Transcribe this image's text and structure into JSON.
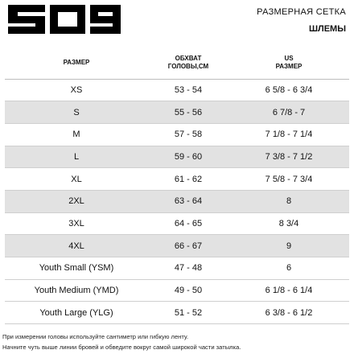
{
  "header": {
    "logo_text": "509",
    "title": "РАЗМЕРНАЯ СЕТКА",
    "subtitle": "ШЛЕМЫ"
  },
  "table": {
    "columns": [
      "РАЗМЕР",
      "ОБХВАТ ГОЛОВЫ,СМ",
      "US РАЗМЕР"
    ],
    "rows": [
      {
        "size": "XS",
        "head": "53 - 54",
        "us": "6 5/8 - 6 3/4"
      },
      {
        "size": "S",
        "head": "55 - 56",
        "us": "6 7/8 - 7"
      },
      {
        "size": "M",
        "head": "57 - 58",
        "us": "7 1/8 - 7 1/4"
      },
      {
        "size": "L",
        "head": "59 - 60",
        "us": "7 3/8 - 7 1/2"
      },
      {
        "size": "XL",
        "head": "61 - 62",
        "us": "7 5/8 - 7 3/4"
      },
      {
        "size": "2XL",
        "head": "63 - 64",
        "us": "8"
      },
      {
        "size": "3XL",
        "head": "64 - 65",
        "us": "8 3/4"
      },
      {
        "size": "4XL",
        "head": "66 - 67",
        "us": "9"
      },
      {
        "size": "Youth Small (YSM)",
        "head": "47 - 48",
        "us": "6"
      },
      {
        "size": "Youth Medium (YMD)",
        "head": "49 - 50",
        "us": "6 1/8 - 6 1/4"
      },
      {
        "size": "Youth Large (YLG)",
        "head": "51 - 52",
        "us": "6 3/8 - 6 1/2"
      }
    ]
  },
  "notes": [
    "При измерении головы используйте сантиметр или гибкую ленту.",
    "Начните чуть выше линии бровей и обведите вокруг самой широкой части затылка."
  ],
  "colors": {
    "shaded_row": "#e2e2e2",
    "text": "#111111",
    "logo": "#000000"
  }
}
